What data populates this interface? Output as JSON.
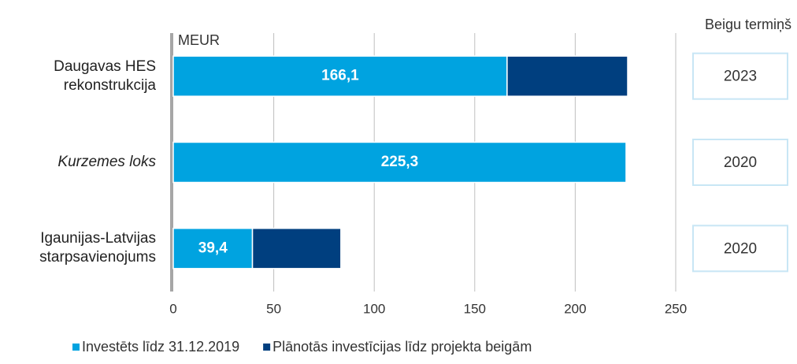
{
  "chart_data": {
    "type": "stacked_barh",
    "axis_label": "MEUR",
    "categories": [
      "Daugavas HES rekonstrukcija",
      "Kurzemes loks",
      "Igaunijas-Latvijas starpsavienojums"
    ],
    "category_styles": [
      "normal",
      "italic",
      "normal"
    ],
    "series": [
      {
        "name": "Investēts līdz 31.12.2019",
        "color": "#00a3e0",
        "values": [
          166.1,
          225.3,
          39.4
        ],
        "value_labels": [
          "166,1",
          "225,3",
          "39,4"
        ]
      },
      {
        "name": "Plānotās investīcijas līdz projekta beigām",
        "color": "#003f7f",
        "values": [
          60,
          0,
          44
        ]
      }
    ],
    "xlim": [
      0,
      250
    ],
    "xticks": [
      0,
      50,
      100,
      150,
      200,
      250
    ],
    "grid": true,
    "end_dates_title": "Beigu termiņš",
    "end_dates": [
      "2023",
      "2020",
      "2020"
    ]
  }
}
